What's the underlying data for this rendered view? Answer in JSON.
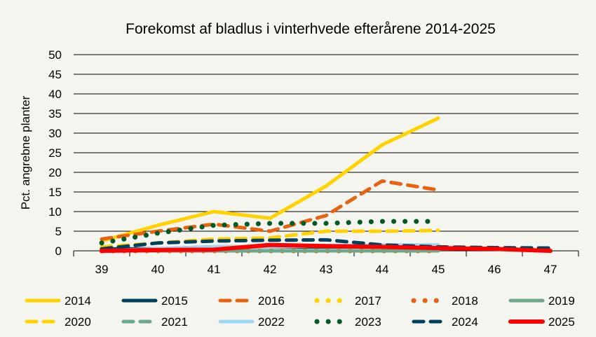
{
  "chart_data": {
    "type": "line",
    "title": "Forekomst af bladlus i vinterhvede efterårene 2014-2025",
    "xlabel": "",
    "ylabel": "Pct. angrebne planter",
    "ylim": [
      0,
      50
    ],
    "yticks": [
      0,
      5,
      10,
      15,
      20,
      25,
      30,
      35,
      40,
      45,
      50
    ],
    "x": [
      39,
      40,
      41,
      42,
      43,
      44,
      45,
      46,
      47
    ],
    "grid": "horizontal",
    "legend": "bottom",
    "series": [
      {
        "name": "2014",
        "color": "#FFD200",
        "style": "solid",
        "values": [
          2.5,
          6.5,
          10,
          8.3,
          16.5,
          27,
          33.8,
          null,
          null
        ]
      },
      {
        "name": "2015",
        "color": "#00425E",
        "style": "solid",
        "values": [
          0.5,
          0.5,
          1,
          1,
          1,
          1,
          1,
          null,
          null
        ]
      },
      {
        "name": "2016",
        "color": "#E8620F",
        "style": "dash",
        "values": [
          3,
          5,
          6.8,
          5,
          9,
          17.8,
          15.5,
          null,
          null
        ]
      },
      {
        "name": "2017",
        "color": "#FFD200",
        "style": "dot",
        "values": [
          0,
          0,
          0,
          0,
          0,
          0,
          0,
          null,
          null
        ]
      },
      {
        "name": "2018",
        "color": "#E8620F",
        "style": "dot",
        "values": [
          0,
          0,
          0,
          0,
          0,
          0,
          0,
          null,
          null
        ]
      },
      {
        "name": "2019",
        "color": "#6BA88A",
        "style": "solid",
        "values": [
          0,
          0,
          0,
          0,
          0,
          0,
          0,
          null,
          null
        ]
      },
      {
        "name": "2020",
        "color": "#FFD200",
        "style": "dash",
        "values": [
          1,
          2,
          3,
          3.3,
          5,
          5,
          5.2,
          null,
          null
        ]
      },
      {
        "name": "2021",
        "color": "#6BA88A",
        "style": "dash",
        "values": [
          0,
          0,
          0,
          0,
          0,
          0,
          0,
          null,
          null
        ]
      },
      {
        "name": "2022",
        "color": "#9DD6F2",
        "style": "solid",
        "values": [
          0,
          0.5,
          1,
          1,
          1.3,
          1.5,
          1.5,
          null,
          null
        ]
      },
      {
        "name": "2023",
        "color": "#005A25",
        "style": "dot",
        "values": [
          2,
          4.5,
          6.5,
          7,
          7,
          7.5,
          7.5,
          null,
          null
        ]
      },
      {
        "name": "2024",
        "color": "#00425E",
        "style": "dash",
        "values": [
          0.5,
          2,
          2.5,
          2.7,
          2.8,
          1.5,
          1,
          0.8,
          0.7
        ]
      },
      {
        "name": "2025",
        "color": "#FF0000",
        "style": "solid",
        "values": [
          0,
          0.2,
          0.3,
          1.5,
          1.2,
          1,
          0.7,
          0.5,
          0
        ]
      }
    ]
  }
}
